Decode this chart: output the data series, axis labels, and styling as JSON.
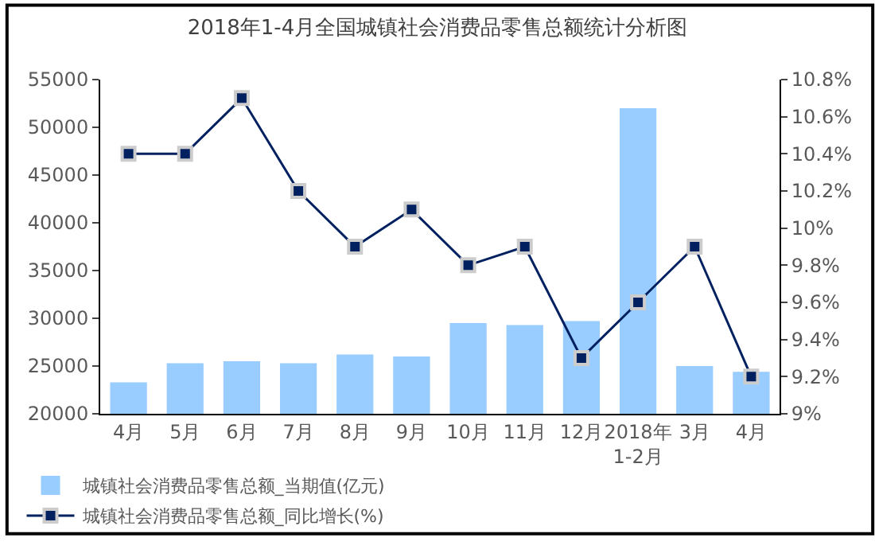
{
  "chart_data": {
    "type": "bar",
    "title": "2018年1-4月全国城镇社会消费品零售总额统计分析图",
    "categories": [
      "4月",
      "5月",
      "6月",
      "7月",
      "8月",
      "9月",
      "10月",
      "11月",
      "12月",
      "2018年1-2月",
      "3月",
      "4月"
    ],
    "series": [
      {
        "name": "城镇社会消费品零售总额_当期值(亿元)",
        "color": "#99ccff",
        "values": [
          23300,
          25300,
          25500,
          25300,
          26200,
          26000,
          29500,
          29300,
          29700,
          52000,
          25000,
          24400
        ]
      },
      {
        "name": "城镇社会消费品零售总额_同比增长(%)",
        "type": "line",
        "axis": "y2",
        "color": "#002060",
        "marker": "square",
        "values": [
          10.4,
          10.4,
          10.7,
          10.2,
          9.9,
          10.1,
          9.8,
          9.9,
          9.3,
          9.6,
          9.9,
          9.2
        ]
      }
    ],
    "ylim": [
      20000,
      55000
    ],
    "yticks": [
      20000,
      25000,
      30000,
      35000,
      40000,
      45000,
      50000,
      55000
    ],
    "y2lim": [
      9,
      10.8
    ],
    "y2ticks": [
      {
        "value": 9,
        "label": "9%"
      },
      {
        "value": 9.2,
        "label": "9.2%"
      },
      {
        "value": 9.4,
        "label": "9.4%"
      },
      {
        "value": 9.6,
        "label": "9.6%"
      },
      {
        "value": 9.8,
        "label": "9.8%"
      },
      {
        "value": 10,
        "label": "10%"
      },
      {
        "value": 10.2,
        "label": "10.2%"
      },
      {
        "value": 10.4,
        "label": "10.4%"
      },
      {
        "value": 10.6,
        "label": "10.6%"
      },
      {
        "value": 10.8,
        "label": "10.8%"
      }
    ],
    "legend": "bottom left"
  }
}
